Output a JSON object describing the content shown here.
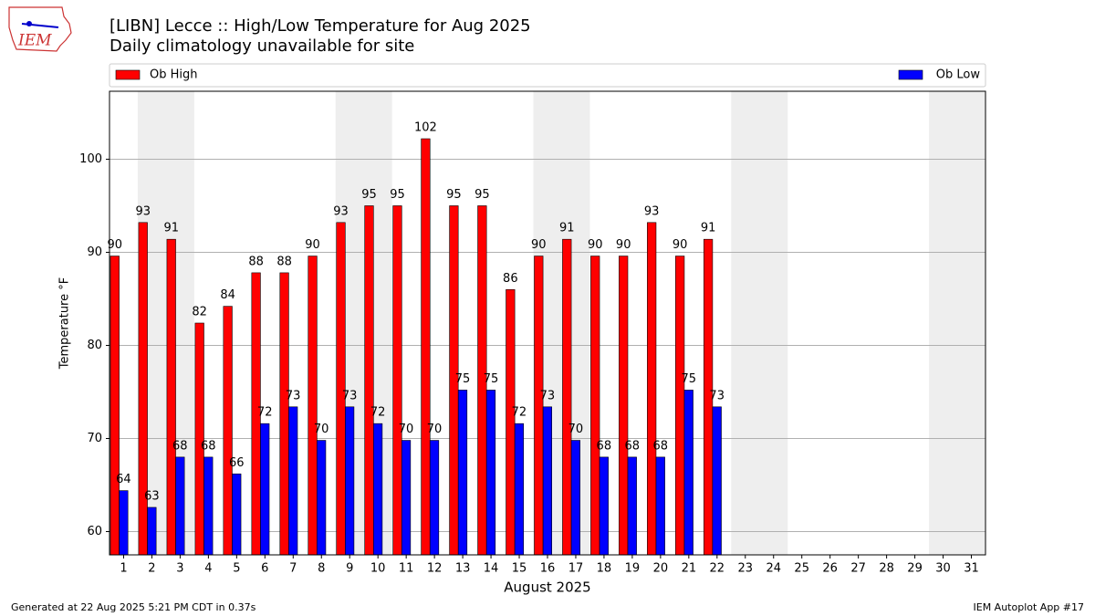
{
  "chart_data": {
    "type": "bar",
    "logo": "IEM",
    "title": "[LIBN] Lecce :: High/Low Temperature for Aug 2025",
    "subtitle": "Daily climatology unavailable for site",
    "x_label": "August 2025",
    "y_label": "Temperature °F",
    "footer_left": "Generated at 22 Aug 2025 5:21 PM CDT in 0.37s",
    "footer_right": "IEM Autoplot App #17",
    "categories": [
      "1",
      "2",
      "3",
      "4",
      "5",
      "6",
      "7",
      "8",
      "9",
      "10",
      "11",
      "12",
      "13",
      "14",
      "15",
      "16",
      "17",
      "18",
      "19",
      "20",
      "21",
      "22",
      "23",
      "24",
      "25",
      "26",
      "27",
      "28",
      "29",
      "30",
      "31"
    ],
    "series": [
      {
        "name": "Ob High",
        "color": "#ff0000",
        "values": [
          89.6,
          93.2,
          91.4,
          82.4,
          84.2,
          87.8,
          87.8,
          89.6,
          93.2,
          95.0,
          95.0,
          102.2,
          95.0,
          95.0,
          86.0,
          89.6,
          91.4,
          89.6,
          89.6,
          93.2,
          89.6,
          91.4,
          null,
          null,
          null,
          null,
          null,
          null,
          null,
          null,
          null
        ],
        "value_labels": [
          "90",
          "93",
          "91",
          "82",
          "84",
          "88",
          "88",
          "90",
          "93",
          "95",
          "95",
          "102",
          "95",
          "95",
          "86",
          "90",
          "91",
          "90",
          "90",
          "93",
          "90",
          "91",
          null,
          null,
          null,
          null,
          null,
          null,
          null,
          null,
          null
        ]
      },
      {
        "name": "Ob Low",
        "color": "#0000ff",
        "values": [
          64.4,
          62.6,
          68.0,
          68.0,
          66.2,
          71.6,
          73.4,
          69.8,
          73.4,
          71.6,
          69.8,
          69.8,
          75.2,
          75.2,
          71.6,
          73.4,
          69.8,
          68.0,
          68.0,
          68.0,
          75.2,
          73.4,
          null,
          null,
          null,
          null,
          null,
          null,
          null,
          null,
          null
        ],
        "value_labels": [
          "64",
          "63",
          "68",
          "68",
          "66",
          "72",
          "73",
          "70",
          "73",
          "72",
          "70",
          "70",
          "75",
          "75",
          "72",
          "73",
          "70",
          "68",
          "68",
          "68",
          "75",
          "73",
          null,
          null,
          null,
          null,
          null,
          null,
          null,
          null,
          null
        ]
      }
    ],
    "ylim": [
      57.5,
      107.3
    ],
    "yticks": [
      60,
      70,
      80,
      90,
      100
    ],
    "grid": true,
    "legend": "top"
  }
}
